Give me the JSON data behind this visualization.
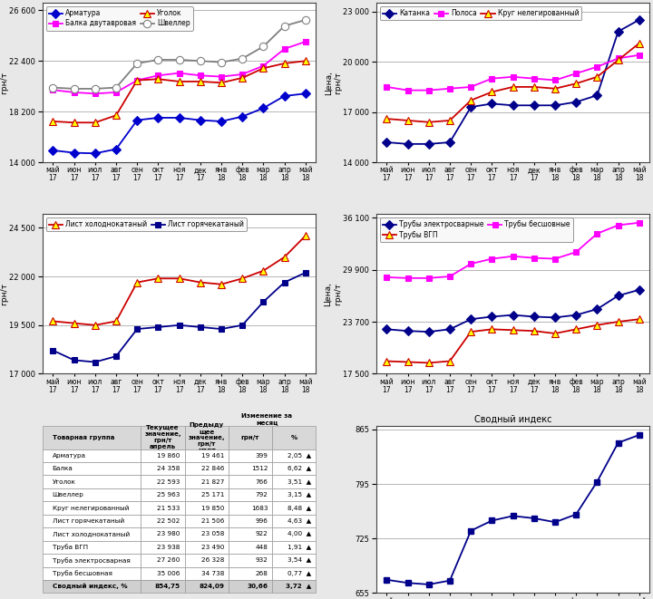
{
  "months_labels": [
    "май\n17",
    "июн\n17",
    "июл\n17",
    "авг\n17",
    "сен\n17",
    "окт\n17",
    "ноя\n17",
    "дек\n17",
    "янв\n18",
    "фев\n18",
    "мар\n18",
    "апр\n18",
    "май\n18"
  ],
  "chart1": {
    "ylabel": "Цена,\nгрн/т",
    "ylim": [
      14000,
      27200
    ],
    "yticks": [
      14000,
      18200,
      22400,
      26600
    ],
    "series": {
      "Арматура": {
        "color": "#0000CD",
        "marker": "D",
        "mfc": "#0000CD",
        "ms": 5,
        "values": [
          15000,
          14800,
          14750,
          15100,
          17500,
          17700,
          17700,
          17500,
          17400,
          17800,
          18500,
          19500,
          19700
        ]
      },
      "Балка двутавровая": {
        "color": "#FF00FF",
        "marker": "s",
        "mfc": "#FF00FF",
        "ms": 5,
        "values": [
          20000,
          19800,
          19700,
          19800,
          20800,
          21200,
          21400,
          21200,
          21100,
          21300,
          22000,
          23400,
          24000
        ]
      },
      "Уголок": {
        "color": "#CC0000",
        "marker": "^",
        "mfc": "#FFFF00",
        "ms": 6,
        "values": [
          17400,
          17300,
          17300,
          17900,
          20800,
          20900,
          20700,
          20700,
          20600,
          21000,
          21800,
          22200,
          22400
        ]
      },
      "Швеллер": {
        "color": "#808080",
        "marker": "o",
        "mfc": "white",
        "ms": 6,
        "values": [
          20200,
          20100,
          20100,
          20200,
          22200,
          22500,
          22500,
          22400,
          22300,
          22600,
          23600,
          25300,
          25800
        ]
      }
    }
  },
  "chart2": {
    "ylabel": "Цена,\nгрн/т",
    "ylim": [
      14000,
      23500
    ],
    "yticks": [
      14000,
      17000,
      20000,
      23000
    ],
    "series": {
      "Катанка": {
        "color": "#00008B",
        "marker": "D",
        "mfc": "#00008B",
        "ms": 5,
        "values": [
          15200,
          15100,
          15100,
          15200,
          17300,
          17500,
          17400,
          17400,
          17400,
          17600,
          18000,
          21800,
          22500
        ]
      },
      "Полоса": {
        "color": "#FF00FF",
        "marker": "s",
        "mfc": "#FF00FF",
        "ms": 5,
        "values": [
          18500,
          18300,
          18300,
          18400,
          18500,
          19000,
          19100,
          19000,
          18900,
          19300,
          19700,
          20200,
          20400
        ]
      },
      "Круг нелегированный": {
        "color": "#CC0000",
        "marker": "^",
        "mfc": "#FFFF00",
        "ms": 6,
        "values": [
          16600,
          16500,
          16400,
          16500,
          17700,
          18200,
          18500,
          18500,
          18400,
          18700,
          19100,
          20100,
          21100
        ]
      }
    }
  },
  "chart3": {
    "ylabel": "Цена,\nгрн/т",
    "ylim": [
      17000,
      25200
    ],
    "yticks": [
      17000,
      19500,
      22000,
      24500
    ],
    "series": {
      "Лист холоднокатаный": {
        "color": "#CC0000",
        "marker": "^",
        "mfc": "#FFFF00",
        "ms": 6,
        "values": [
          19700,
          19600,
          19500,
          19700,
          21700,
          21900,
          21900,
          21700,
          21600,
          21900,
          22300,
          23000,
          24100
        ]
      },
      "Лист горячекатаный": {
        "color": "#00008B",
        "marker": "s",
        "mfc": "#00008B",
        "ms": 5,
        "values": [
          18200,
          17700,
          17600,
          17900,
          19300,
          19400,
          19500,
          19400,
          19300,
          19500,
          20700,
          21700,
          22200
        ]
      }
    }
  },
  "chart4": {
    "ylabel": "Цена,\nгрн/т",
    "ylim": [
      17500,
      36500
    ],
    "yticks": [
      17500,
      23700,
      29900,
      36100
    ],
    "series": {
      "Трубы электросварные": {
        "color": "#00008B",
        "marker": "D",
        "mfc": "#00008B",
        "ms": 5,
        "values": [
          22800,
          22600,
          22500,
          22800,
          24000,
          24300,
          24500,
          24300,
          24200,
          24500,
          25200,
          26800,
          27500
        ]
      },
      "Трубы ВГП": {
        "color": "#CC0000",
        "marker": "^",
        "mfc": "#FFFF00",
        "ms": 6,
        "values": [
          19000,
          18900,
          18800,
          19000,
          22500,
          22800,
          22700,
          22600,
          22300,
          22800,
          23300,
          23700,
          24000
        ]
      },
      "Трубы бесшовные": {
        "color": "#FF00FF",
        "marker": "s",
        "mfc": "#FF00FF",
        "ms": 5,
        "values": [
          29000,
          28900,
          28900,
          29100,
          30600,
          31200,
          31500,
          31300,
          31200,
          32000,
          34200,
          35200,
          35500
        ]
      }
    }
  },
  "chart5": {
    "title": "Сводный индекс",
    "ylim": [
      655,
      870
    ],
    "yticks": [
      655,
      725,
      795,
      865
    ],
    "series": {
      "Индекс": {
        "color": "#00008B",
        "marker": "s",
        "mfc": "#00008B",
        "ms": 5,
        "values": [
          672,
          668,
          666,
          671,
          735,
          748,
          754,
          751,
          746,
          756,
          798,
          848,
          858
        ]
      }
    }
  },
  "table_rows": [
    [
      "Арматура",
      "19 860",
      "19 461",
      "399",
      "2,05"
    ],
    [
      "Балка",
      "24 358",
      "22 846",
      "1512",
      "6,62"
    ],
    [
      "Уголок",
      "22 593",
      "21 827",
      "766",
      "3,51"
    ],
    [
      "Швеллер",
      "25 963",
      "25 171",
      "792",
      "3,15"
    ],
    [
      "Круг нелегированный",
      "21 533",
      "19 850",
      "1683",
      "8,48"
    ],
    [
      "Лист горячекатаный",
      "22 502",
      "21 506",
      "996",
      "4,63"
    ],
    [
      "Лист холоднокатаный",
      "23 980",
      "23 058",
      "922",
      "4,00"
    ],
    [
      "Труба ВГП",
      "23 938",
      "23 490",
      "448",
      "1,91"
    ],
    [
      "Труба электросварная",
      "27 260",
      "26 328",
      "932",
      "3,54"
    ],
    [
      "Труба бесшовная",
      "35 006",
      "34 738",
      "268",
      "0,77"
    ],
    [
      "Сводный индекс, %",
      "854,75",
      "824,09",
      "30,66",
      "3,72"
    ]
  ],
  "bg_color": "#e8e8e8"
}
